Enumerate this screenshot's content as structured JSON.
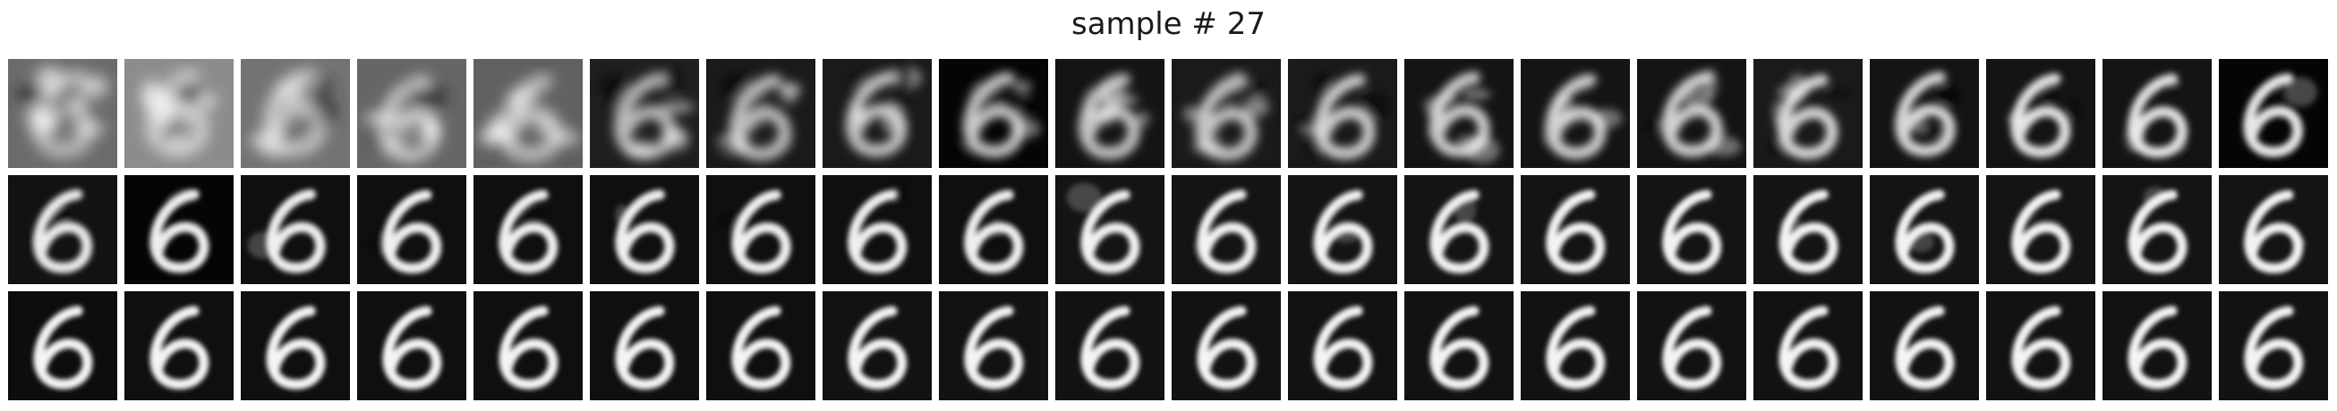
{
  "figure": {
    "title": "sample # 27"
  },
  "grid": {
    "rows": 3,
    "cols": 20,
    "digit": "6",
    "noise_progression": [
      [
        0.92,
        0.85,
        0.88,
        0.8,
        0.82,
        0.62,
        0.55,
        0.52,
        0.45,
        0.48,
        0.5,
        0.42,
        0.4,
        0.38,
        0.36,
        0.34,
        0.3,
        0.22,
        0.2,
        0.15
      ],
      [
        0.12,
        0.08,
        0.08,
        0.07,
        0.07,
        0.06,
        0.06,
        0.06,
        0.08,
        0.05,
        0.05,
        0.05,
        0.05,
        0.04,
        0.04,
        0.04,
        0.04,
        0.04,
        0.04,
        0.04
      ],
      [
        0.03,
        0.03,
        0.03,
        0.03,
        0.03,
        0.02,
        0.02,
        0.02,
        0.02,
        0.02,
        0.02,
        0.02,
        0.02,
        0.02,
        0.02,
        0.02,
        0.02,
        0.02,
        0.02,
        0.02
      ]
    ],
    "background_gray": [
      [
        0.42,
        0.55,
        0.45,
        0.4,
        0.38,
        0.12,
        0.1,
        0.1,
        0.02,
        0.08,
        0.1,
        0.1,
        0.08,
        0.08,
        0.08,
        0.1,
        0.08,
        0.08,
        0.08,
        0.02
      ],
      [
        0.07,
        0.02,
        0.06,
        0.06,
        0.06,
        0.06,
        0.06,
        0.06,
        0.06,
        0.08,
        0.08,
        0.08,
        0.08,
        0.08,
        0.08,
        0.08,
        0.08,
        0.08,
        0.08,
        0.08
      ],
      [
        0.05,
        0.06,
        0.06,
        0.06,
        0.06,
        0.06,
        0.06,
        0.07,
        0.07,
        0.07,
        0.07,
        0.07,
        0.07,
        0.07,
        0.07,
        0.07,
        0.07,
        0.07,
        0.07,
        0.07
      ]
    ]
  }
}
